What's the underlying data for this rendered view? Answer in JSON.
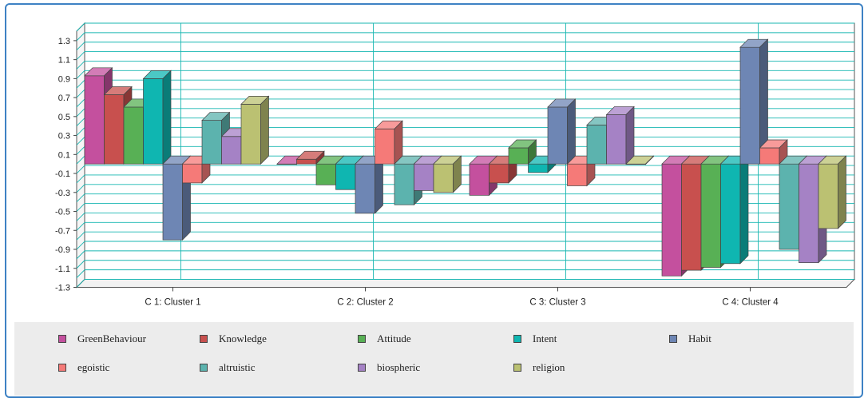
{
  "chart_data": {
    "type": "bar",
    "title": "",
    "xlabel": "",
    "ylabel": "",
    "ylim": [
      -1.3,
      1.4
    ],
    "yticks": [
      "1.3",
      "1.1",
      "0.9",
      "0.7",
      "0.5",
      "0.3",
      "0.1",
      "-0.1",
      "-0.3",
      "-0.5",
      "-0.7",
      "-0.9",
      "-1.1",
      "-1.3"
    ],
    "categories": [
      "C 1: Cluster 1",
      "C 2: Cluster 2",
      "C 3: Cluster 3",
      "C 4: Cluster 4"
    ],
    "grid": true,
    "legend_position": "bottom",
    "series": [
      {
        "name": "GreenBehaviour",
        "color": "#c4509e",
        "values": [
          0.93,
          0.0,
          -0.33,
          -1.18
        ]
      },
      {
        "name": "Knowledge",
        "color": "#c8504e",
        "values": [
          0.73,
          0.05,
          -0.2,
          -1.12
        ]
      },
      {
        "name": "Attitude",
        "color": "#58b055",
        "values": [
          0.6,
          -0.22,
          0.17,
          -1.09
        ]
      },
      {
        "name": "Intent",
        "color": "#0fb6b1",
        "values": [
          0.9,
          -0.27,
          -0.09,
          -1.05
        ]
      },
      {
        "name": "Habit",
        "color": "#6e86b4",
        "values": [
          -0.8,
          -0.52,
          0.6,
          1.23
        ]
      },
      {
        "name": "egoistic",
        "color": "#f57a78",
        "values": [
          -0.2,
          0.37,
          -0.23,
          0.17
        ]
      },
      {
        "name": "altruistic",
        "color": "#5cb3ae",
        "values": [
          0.46,
          -0.43,
          0.41,
          -0.9
        ]
      },
      {
        "name": "biospheric",
        "color": "#a582c5",
        "values": [
          0.29,
          -0.28,
          0.52,
          -1.04
        ]
      },
      {
        "name": "religion",
        "color": "#bbc172",
        "values": [
          0.63,
          -0.3,
          0.0,
          -0.68
        ]
      }
    ]
  }
}
